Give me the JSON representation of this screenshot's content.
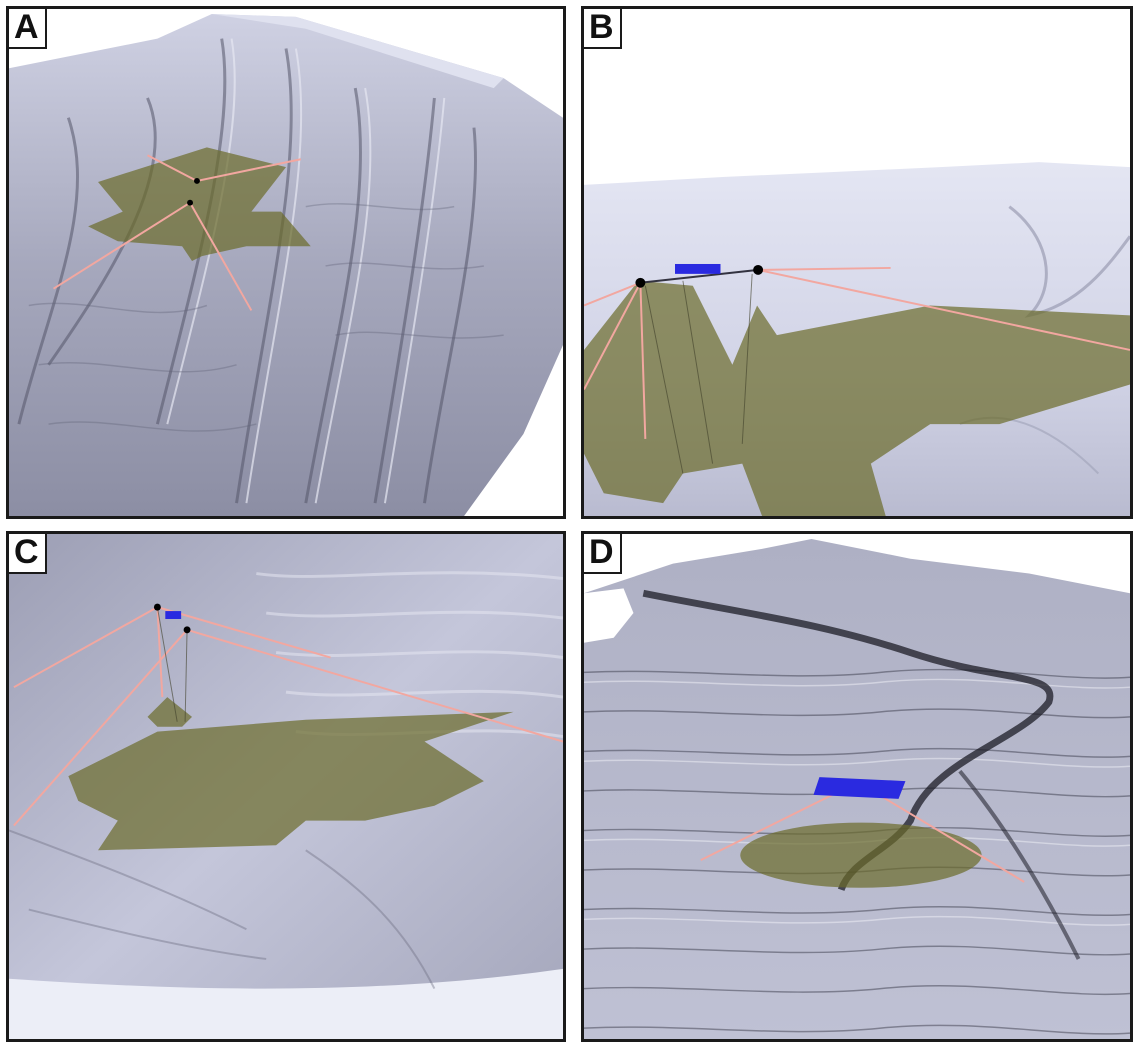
{
  "figure": {
    "panels": [
      {
        "id": "a",
        "label": "A"
      },
      {
        "id": "b",
        "label": "B"
      },
      {
        "id": "c",
        "label": "C"
      },
      {
        "id": "d",
        "label": "D"
      }
    ]
  },
  "colors": {
    "terrain_light": "#e4e5f1",
    "terrain_mid": "#a9abbe",
    "terrain_dark": "#4b4c5e",
    "footprint_fill": "#6b6b2a",
    "beam_line": "#f2a7a0",
    "vehicle": "#2a2ae0",
    "frame": "#1a1a1a"
  }
}
